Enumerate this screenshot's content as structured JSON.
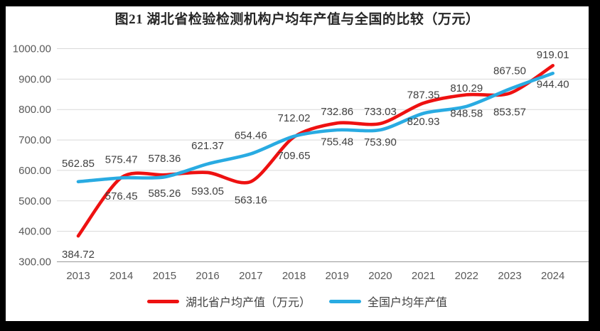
{
  "chart_data": {
    "type": "line",
    "title": "图21 湖北省检验检测机构户均年产值与全国的比较（万元）",
    "categories": [
      "2013",
      "2014",
      "2015",
      "2016",
      "2017",
      "2018",
      "2019",
      "2020",
      "2021",
      "2022",
      "2023",
      "2024"
    ],
    "series": [
      {
        "name": "湖北省户均产值（万元）",
        "color": "#EE1111",
        "label_position": "below",
        "values": [
          384.72,
          576.45,
          585.26,
          593.05,
          563.16,
          709.65,
          755.48,
          753.9,
          820.93,
          848.58,
          853.57,
          944.4
        ]
      },
      {
        "name": "全国户均年产值",
        "color": "#29ABE2",
        "label_position": "above",
        "values": [
          562.85,
          575.47,
          578.36,
          621.37,
          654.46,
          712.02,
          732.86,
          733.03,
          787.35,
          810.29,
          867.5,
          919.01
        ]
      }
    ],
    "ylim": [
      300,
      1000
    ],
    "y_ticks": [
      "300.00",
      "400.00",
      "500.00",
      "600.00",
      "700.00",
      "800.00",
      "900.00",
      "1000.00"
    ],
    "grid": "horizontal",
    "legend_position": "bottom",
    "smooth_lines": true
  },
  "colors": {
    "frame": "#000000",
    "plot_background": "#ffffff",
    "gridline": "#D9D9D9",
    "axis_line": "#A6A6A6",
    "tick_label": "#595959",
    "data_label": "#404040",
    "title": "#262626"
  }
}
